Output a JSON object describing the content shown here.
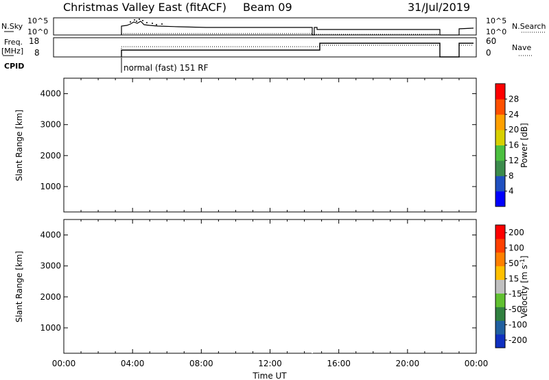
{
  "header": {
    "station": "Christmas Valley East (fitACF)",
    "beam": "Beam 09",
    "date": "31/Jul/2019"
  },
  "panels": {
    "nsky_label": "N.Sky",
    "nsearch_label": "N.Search",
    "freq_label_1": "Freq.",
    "freq_label_2": "[MHz]",
    "nave_label": "Nave",
    "cpid_label": "CPID",
    "cpid_text": "normal (fast) 151 RF",
    "nsky_ticks": [
      "10^5",
      "10^0"
    ],
    "nsearch_ticks": [
      "10^5",
      "10^0"
    ],
    "freq_ticks": [
      "18",
      "8"
    ],
    "nave_ticks": [
      "60",
      "0"
    ]
  },
  "chart_data": [
    {
      "type": "heatmap",
      "name": "power",
      "ylabel": "Slant Range [km]",
      "xlabel": "Time UT",
      "ylim": [
        180,
        4500
      ],
      "yticks": [
        1000,
        2000,
        3000,
        4000
      ],
      "xticks": [
        "00:00",
        "04:00",
        "08:00",
        "12:00",
        "16:00",
        "20:00",
        "00:00"
      ],
      "colorbar": {
        "label": "Power [dB]",
        "ticks": [
          "4",
          "8",
          "12",
          "16",
          "20",
          "24",
          "28"
        ],
        "colors": [
          "#0000ff",
          "#2050c0",
          "#3c8c4c",
          "#4cc040",
          "#d8d000",
          "#ffa000",
          "#ff5000",
          "#ff0000"
        ]
      }
    },
    {
      "type": "heatmap",
      "name": "velocity",
      "ylabel": "Slant Range [km]",
      "xlabel": "Time UT",
      "ylim": [
        180,
        4500
      ],
      "yticks": [
        1000,
        2000,
        3000,
        4000
      ],
      "xticks": [
        "00:00",
        "04:00",
        "08:00",
        "12:00",
        "16:00",
        "20:00",
        "00:00"
      ],
      "colorbar": {
        "label": "Velocity [m s-1]",
        "label_main": "Velocity [m s",
        "label_exp": "-1",
        "label_end": "]",
        "ticks": [
          "200",
          "100",
          "50",
          "15",
          "-15",
          "-50",
          "-100",
          "-200"
        ],
        "colors": [
          "#1030c0",
          "#2060a0",
          "#308040",
          "#60c030",
          "#c0c0c0",
          "#ffc000",
          "#ff8000",
          "#ff4000",
          "#ff0000"
        ]
      }
    }
  ]
}
